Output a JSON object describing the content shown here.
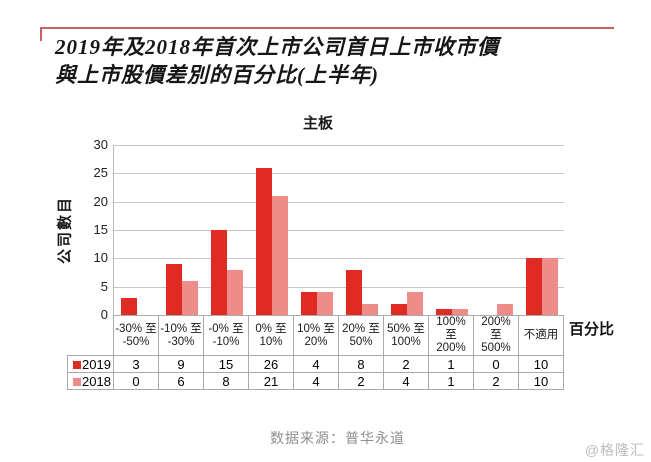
{
  "header": {
    "title_line1": "2019年及2018年首次上市公司首日上市收市價",
    "title_line2": "與上市股價差別的百分比(上半年)",
    "rule_color": "#c96161"
  },
  "chart_data": {
    "type": "bar",
    "title": "主板",
    "ylabel": "公司數目",
    "xlabel": "百分比",
    "ylim": [
      0,
      30
    ],
    "yticks": [
      30,
      25,
      20,
      15,
      10,
      5,
      0
    ],
    "grid": true,
    "legend_position": "table-rows-left",
    "categories": [
      "-30% 至\n-50%",
      "-10% 至\n-30%",
      "-0% 至\n-10%",
      "0% 至\n10%",
      "10% 至\n20%",
      "20% 至\n50%",
      "50% 至\n100%",
      "100% 至\n200%",
      "200% 至\n500%",
      "不適用"
    ],
    "series": [
      {
        "name": "2019",
        "color": "#e02b25",
        "values": [
          3,
          9,
          15,
          26,
          4,
          8,
          2,
          1,
          0,
          10
        ]
      },
      {
        "name": "2018",
        "color": "#ee8c8a",
        "values": [
          0,
          6,
          8,
          21,
          4,
          2,
          4,
          1,
          2,
          10
        ]
      }
    ]
  },
  "colors": {
    "grid": "#c7c7c7",
    "table_border": "#aaaaaa",
    "series_2019": "#e02b25",
    "series_2018": "#ee8c8a"
  },
  "footer": {
    "source": "数据来源：普华永道",
    "watermark": "@格隆汇"
  }
}
